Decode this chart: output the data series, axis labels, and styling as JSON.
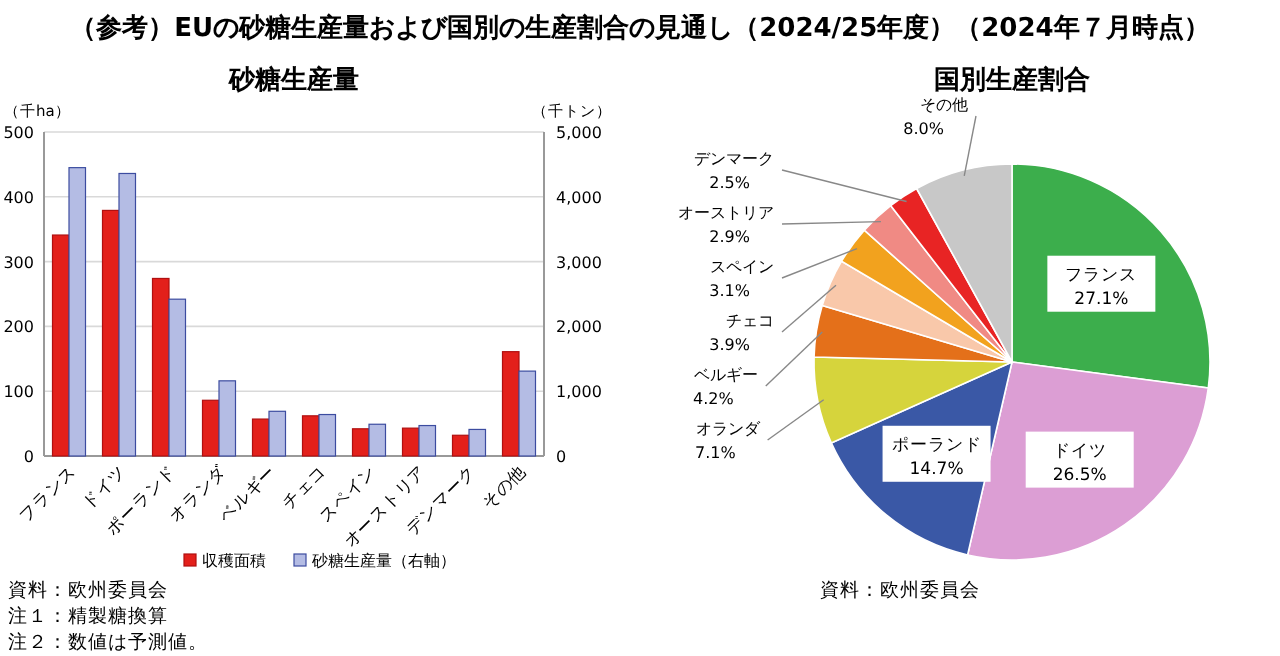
{
  "chart_data": [
    {
      "type": "bar",
      "title": "（参考）EUの砂糖生産量および国別の生産割合の見通し（2024/25年度）（2024年７月時点）",
      "subtitle": "砂糖生産量",
      "ylabel": "（千ha）",
      "y2label": "（千トン）",
      "categories": [
        "フランス",
        "ドイツ",
        "ポーランド",
        "オランダ",
        "ベルギー",
        "チェコ",
        "スペイン",
        "オーストリア",
        "デンマーク",
        "その他"
      ],
      "series": [
        {
          "name": "収穫面積",
          "color": "#e3201b",
          "values": [
            341,
            379,
            274,
            86,
            57,
            62,
            42,
            43,
            32,
            161
          ]
        },
        {
          "name": "砂糖生産量（右軸）",
          "color": "#b4bce4",
          "axis": "y2",
          "values": [
            4450,
            4360,
            2420,
            1160,
            690,
            640,
            490,
            470,
            410,
            1310
          ]
        }
      ],
      "ylim": [
        0,
        500
      ],
      "yticks": [
        0,
        100,
        200,
        300,
        400,
        500
      ],
      "y2lim": [
        0,
        5000
      ],
      "y2ticks": [
        0,
        {
          "value": 1000,
          "label": "1,000"
        },
        {
          "value": 2000,
          "label": "2,000"
        },
        {
          "value": 3000,
          "label": "3,000"
        },
        {
          "value": 4000,
          "label": "4,000"
        },
        {
          "value": 5000,
          "label": "5,000"
        }
      ],
      "grid": "y",
      "legend": "bottom",
      "annotations": [
        "資料：欧州委員会",
        "注１：精製糖換算",
        "注２：数値は予測値。"
      ]
    },
    {
      "type": "pie",
      "title": "国別生産割合",
      "categories": [
        "フランス",
        "ドイツ",
        "ポーランド",
        "オランダ",
        "ベルギー",
        "チェコ",
        "スペイン",
        "オーストリア",
        "デンマーク",
        "その他"
      ],
      "values": [
        27.1,
        26.5,
        14.7,
        7.1,
        4.2,
        3.9,
        3.1,
        2.9,
        2.5,
        8.0
      ],
      "colors": [
        "#3cae4c",
        "#dc9ed4",
        "#3a58a6",
        "#d6d43c",
        "#e4701a",
        "#f9c8aa",
        "#f2a21e",
        "#f08a84",
        "#e82424",
        "#c8c8c8"
      ],
      "value_labels": [
        "27.1%",
        "26.5%",
        "14.7%",
        "7.1%",
        "4.2%",
        "3.9%",
        "3.1%",
        "2.9%",
        "2.5%",
        "8.0%"
      ],
      "annotations": [
        "資料：欧州委員会"
      ]
    }
  ]
}
